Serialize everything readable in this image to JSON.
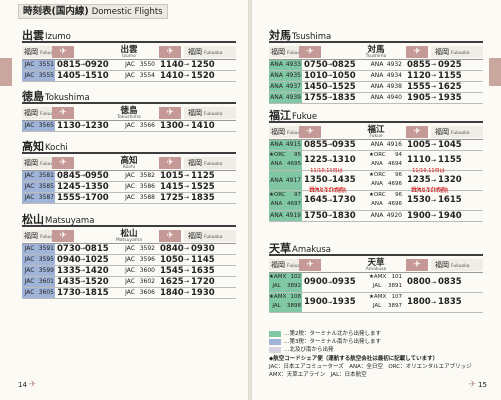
{
  "left": {
    "header_jp": "時刻表(国内線)",
    "header_en": "Domestic Flights",
    "page_number": "14",
    "sections": [
      {
        "jp": "出雲",
        "en": "Izumo",
        "from_jp": "福岡",
        "from_en": "Fukuoka",
        "dest_jp": "出雲",
        "dest_en": "Izumo",
        "to_jp": "福岡",
        "to_en": "Fukuoka",
        "rows": [
          {
            "al1": "JAC",
            "fn1": "3551",
            "dep1": "0815",
            "arr1": "0920",
            "al2": "JAC",
            "fn2": "3550",
            "dep2": "1140",
            "arr2": "1250"
          },
          {
            "al1": "JAC",
            "fn1": "3555",
            "dep1": "1405",
            "arr1": "1510",
            "al2": "JAC",
            "fn2": "3554",
            "dep2": "1410",
            "arr2": "1520"
          }
        ]
      },
      {
        "jp": "徳島",
        "en": "Tokushima",
        "from_jp": "福岡",
        "from_en": "Fukuoka",
        "dest_jp": "徳島",
        "dest_en": "Tokushima",
        "to_jp": "福岡",
        "to_en": "Fukuoka",
        "rows": [
          {
            "al1": "JAC",
            "fn1": "3565",
            "dep1": "1130",
            "arr1": "1230",
            "al2": "JAC",
            "fn2": "3566",
            "dep2": "1300",
            "arr2": "1410"
          }
        ]
      },
      {
        "jp": "高知",
        "en": "Kochi",
        "from_jp": "福岡",
        "from_en": "Fukuoka",
        "dest_jp": "高知",
        "dest_en": "Kochi",
        "to_jp": "福岡",
        "to_en": "Fukuoka",
        "rows": [
          {
            "al1": "JAC",
            "fn1": "3581",
            "dep1": "0845",
            "arr1": "0950",
            "al2": "JAC",
            "fn2": "3582",
            "dep2": "1015",
            "arr2": "1125"
          },
          {
            "al1": "JAC",
            "fn1": "3585",
            "dep1": "1245",
            "arr1": "1350",
            "al2": "JAC",
            "fn2": "3586",
            "dep2": "1415",
            "arr2": "1525"
          },
          {
            "al1": "JAC",
            "fn1": "3587",
            "dep1": "1555",
            "arr1": "1700",
            "al2": "JAC",
            "fn2": "3588",
            "dep2": "1725",
            "arr2": "1835"
          }
        ]
      },
      {
        "jp": "松山",
        "en": "Matsuyama",
        "from_jp": "福岡",
        "from_en": "Fukuoka",
        "dest_jp": "松山",
        "dest_en": "Matsuyama",
        "to_jp": "福岡",
        "to_en": "Fukuoka",
        "rows": [
          {
            "al1": "JAC",
            "fn1": "3591",
            "dep1": "0730",
            "arr1": "0815",
            "al2": "JAC",
            "fn2": "3592",
            "dep2": "0840",
            "arr2": "0930"
          },
          {
            "al1": "JAC",
            "fn1": "3595",
            "dep1": "0940",
            "arr1": "1025",
            "al2": "JAC",
            "fn2": "3596",
            "dep2": "1050",
            "arr2": "1145"
          },
          {
            "al1": "JAC",
            "fn1": "3599",
            "dep1": "1335",
            "arr1": "1420",
            "al2": "JAC",
            "fn2": "3600",
            "dep2": "1545",
            "arr2": "1635"
          },
          {
            "al1": "JAC",
            "fn1": "3601",
            "dep1": "1435",
            "arr1": "1520",
            "al2": "JAC",
            "fn2": "3602",
            "dep2": "1625",
            "arr2": "1720"
          },
          {
            "al1": "JAC",
            "fn1": "3605",
            "dep1": "1730",
            "arr1": "1815",
            "al2": "JAC",
            "fn2": "3606",
            "dep2": "1840",
            "arr2": "1930"
          }
        ]
      }
    ]
  },
  "right": {
    "page_number": "15",
    "tsushima": {
      "jp": "対馬",
      "en": "Tsushima",
      "from_jp": "福岡",
      "from_en": "Fukuoka",
      "dest_jp": "対馬",
      "dest_en": "Tsushima",
      "to_jp": "福岡",
      "to_en": "Fukuoka",
      "rows": [
        {
          "al1": "ANA",
          "fn1": "4933",
          "dep1": "0750",
          "arr1": "0825",
          "al2": "ANA",
          "fn2": "4932",
          "dep2": "0855",
          "arr2": "0925"
        },
        {
          "al1": "ANA",
          "fn1": "4935",
          "dep1": "1010",
          "arr1": "1050",
          "al2": "ANA",
          "fn2": "4934",
          "dep2": "1120",
          "arr2": "1155"
        },
        {
          "al1": "ANA",
          "fn1": "4937",
          "dep1": "1450",
          "arr1": "1525",
          "al2": "ANA",
          "fn2": "4938",
          "dep2": "1555",
          "arr2": "1625"
        },
        {
          "al1": "ANA",
          "fn1": "4939",
          "dep1": "1755",
          "arr1": "1835",
          "al2": "ANA",
          "fn2": "4940",
          "dep2": "1905",
          "arr2": "1935"
        }
      ]
    },
    "fukue": {
      "jp": "福江",
      "en": "Fukue",
      "from_jp": "福岡",
      "from_en": "Fukuoka",
      "dest_jp": "福江",
      "dest_en": "Fukue",
      "to_jp": "福岡",
      "to_en": "Fukuoka",
      "rows": [
        {
          "al1": "ANA",
          "fn1": "4915",
          "dep1": "0855",
          "arr1": "0935",
          "al2": "ANA",
          "fn2": "4916",
          "dep2": "1005",
          "arr2": "1045",
          "tall": false
        },
        {
          "al1": "★ORC\nANA",
          "fn1": "95\n4695",
          "dep1": "1225",
          "arr1": "1310",
          "al2": "★ORC\nANA",
          "fn2": "94\n4694",
          "dep2": "1110",
          "arr2": "1155",
          "tall": true,
          "note1": "11/10,11日は\n運休となります",
          "note2": "11/10,11日は\n運休となります"
        },
        {
          "al1": "ANA",
          "fn1": "4917",
          "dep1": "1350",
          "arr1": "1435",
          "al2": "★ORC\nANA",
          "fn2": "96\n4696",
          "dep2": "1235",
          "arr2": "1320",
          "tall": true,
          "note1": "11/10,11日運航",
          "note2": "11/10,11日運航"
        },
        {
          "al1": "★ORC\nANA",
          "fn1": "97\n4697",
          "dep1": "1645",
          "arr1": "1730",
          "al2": "★ORC\nANA",
          "fn2": "96\n4696",
          "dep2": "1530",
          "arr2": "1615",
          "tall": true
        },
        {
          "al1": "ANA",
          "fn1": "4919",
          "dep1": "1750",
          "arr1": "1830",
          "al2": "ANA",
          "fn2": "4920",
          "dep2": "1900",
          "arr2": "1940",
          "tall": false
        }
      ]
    },
    "amakusa": {
      "jp": "天草",
      "en": "Amakusa",
      "from_jp": "福岡",
      "from_en": "Fukuoka",
      "dest_jp": "天草",
      "dest_en": "Amakusa",
      "to_jp": "福岡",
      "to_en": "Fukuoka",
      "rows": [
        {
          "al1": "★AMX\nJAL",
          "fn1": "102\n3892",
          "dep1": "0900",
          "arr1": "0935",
          "al2": "★AMX\nJAL",
          "fn2": "101\n3891",
          "dep2": "0800",
          "arr2": "0835",
          "tall": true
        },
        {
          "al1": "★AMX\nJAL",
          "fn1": "108\n3898",
          "dep1": "1900",
          "arr1": "1935",
          "al2": "★AMX\nJAL",
          "fn2": "107\n3897",
          "dep2": "1800",
          "arr2": "1835",
          "tall": true
        }
      ]
    },
    "legend": {
      "item1": "…第2税：ターミナル北から出発します",
      "item2": "…第3税：ターミナル南から出発します",
      "item3": "…北及び南から出発",
      "codes_title": "◆航空コードシェア便（運航する航空会社は最初に記載しています）",
      "codes1": "JAC：日本エアコミューターズ　ANA：全日空　ORC：オリエンタルエアブリッジ",
      "codes2": "AMX：天草エアライン　JAL：日本航空"
    }
  },
  "colors": {
    "jac_shade": "#9fb4d8",
    "ana_shade": "#80c7a3",
    "plane_badge": "#c59a96"
  }
}
